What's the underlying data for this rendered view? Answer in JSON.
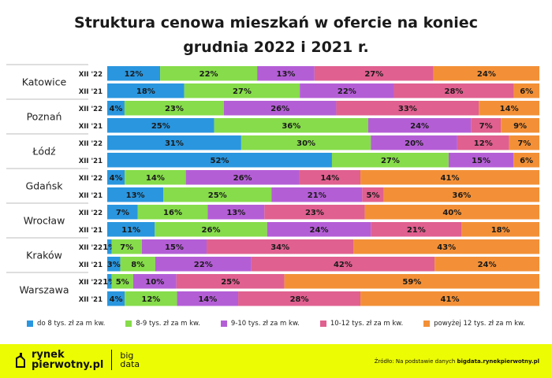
{
  "title": {
    "line1": "Struktura cenowa mieszkań w ofercie na koniec",
    "line2": "grudnia 2022 i 2021 r."
  },
  "chart_data": {
    "type": "bar",
    "orientation": "horizontal",
    "stacked": "percent",
    "title": "Struktura cenowa mieszkań w ofercie na koniec grudnia 2022 i 2021 r.",
    "grid": false,
    "legend_position": "bottom",
    "series": [
      {
        "name": "do 8 tys. zł za m kw.",
        "color": "#2a96df"
      },
      {
        "name": "8-9 tys. zł za m kw.",
        "color": "#86dc4a"
      },
      {
        "name": "9-10 tys. zł za m kw.",
        "color": "#b45ed6"
      },
      {
        "name": "10-12 tys. zł za m kw.",
        "color": "#e0608f"
      },
      {
        "name": "powyżej 12 tys. zł za m kw.",
        "color": "#f39037"
      }
    ],
    "groups": [
      {
        "city": "Katowice",
        "rows": [
          {
            "period": "XII '22",
            "values": [
              12,
              22,
              13,
              27,
              24
            ]
          },
          {
            "period": "XII '21",
            "values": [
              18,
              27,
              22,
              28,
              6
            ]
          }
        ]
      },
      {
        "city": "Poznań",
        "rows": [
          {
            "period": "XII '22",
            "values": [
              4,
              23,
              26,
              33,
              14
            ]
          },
          {
            "period": "XII '21",
            "values": [
              25,
              36,
              24,
              7,
              9
            ]
          }
        ]
      },
      {
        "city": "Łódź",
        "rows": [
          {
            "period": "XII '22",
            "values": [
              31,
              30,
              20,
              12,
              7
            ]
          },
          {
            "period": "XII '21",
            "values": [
              52,
              27,
              15,
              0,
              6
            ]
          }
        ]
      },
      {
        "city": "Gdańsk",
        "rows": [
          {
            "period": "XII '22",
            "values": [
              4,
              14,
              26,
              14,
              41
            ]
          },
          {
            "period": "XII '21",
            "values": [
              13,
              25,
              21,
              5,
              36
            ]
          }
        ]
      },
      {
        "city": "Wrocław",
        "rows": [
          {
            "period": "XII '22",
            "values": [
              7,
              16,
              13,
              23,
              40
            ]
          },
          {
            "period": "XII '21",
            "values": [
              11,
              26,
              24,
              21,
              18
            ]
          }
        ]
      },
      {
        "city": "Kraków",
        "rows": [
          {
            "period": "XII '22",
            "values": [
              1,
              7,
              15,
              34,
              43
            ]
          },
          {
            "period": "XII '21",
            "values": [
              3,
              8,
              22,
              42,
              24
            ]
          }
        ]
      },
      {
        "city": "Warszawa",
        "rows": [
          {
            "period": "XII '22",
            "values": [
              1,
              5,
              10,
              25,
              59
            ]
          },
          {
            "period": "XII '21",
            "values": [
              4,
              12,
              14,
              28,
              41
            ]
          }
        ]
      }
    ]
  },
  "legend": {
    "items": [
      {
        "label": "do 8 tys. zł za m kw.",
        "color": "#2a96df"
      },
      {
        "label": "8-9 tys. zł za m kw.",
        "color": "#86dc4a"
      },
      {
        "label": "9-10 tys. zł za m kw.",
        "color": "#b45ed6"
      },
      {
        "label": "10-12 tys. zł za m kw.",
        "color": "#e0608f"
      },
      {
        "label": "powyżej 12 tys. zł za m kw.",
        "color": "#f39037"
      }
    ]
  },
  "footer": {
    "logo_line1": "rynek",
    "logo_line2": "pierwotny.pl",
    "bigdata_line1": "big",
    "bigdata_line2": "data",
    "source_prefix": "Źródło: Na podstawie danych",
    "source_site": "bigdata.rynekpierwotny.pl"
  }
}
